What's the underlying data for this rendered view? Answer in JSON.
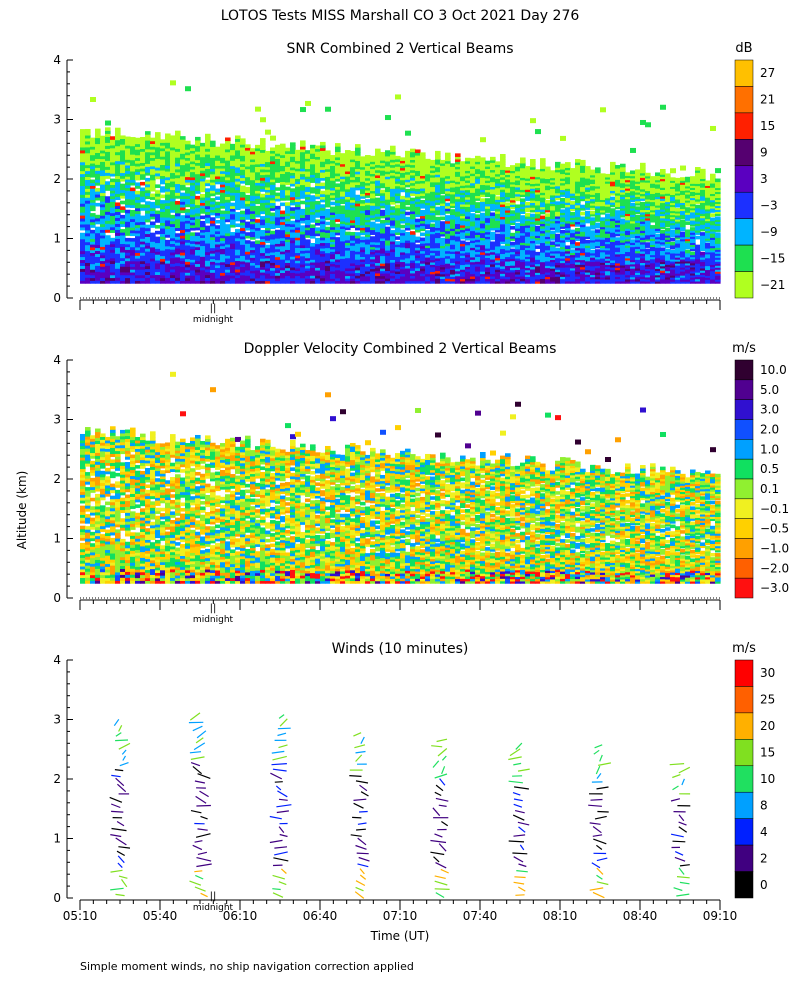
{
  "figure": {
    "main_title": "LOTOS Tests MISS Marshall CO   3 Oct 2021 Day 276",
    "y_axis_label": "Altitude (km)",
    "x_axis_label": "Time (UT)",
    "midnight_marker": "midnight",
    "footnote": "Simple moment winds, no ship navigation correction applied"
  },
  "chart_data": [
    {
      "type": "heatmap",
      "title": "SNR Combined 2 Vertical Beams",
      "colorbar_unit": "dB",
      "xlim": [
        "05:10",
        "09:10"
      ],
      "ylim": [
        0,
        4
      ],
      "yticks": [
        "0",
        "1",
        "2",
        "3",
        "4"
      ],
      "colorbar_levels": [
        "27",
        "21",
        "15",
        "9",
        "3",
        "−3",
        "−9",
        "−15",
        "−21"
      ],
      "colorbar_colors": [
        "#ffc000",
        "#ff7000",
        "#ff2000",
        "#550070",
        "#5a00c0",
        "#1c30ff",
        "#00b4ff",
        "#1ee050",
        "#b0ff20"
      ],
      "data_top_km": 2.8,
      "data_bottom_km": 0.25
    },
    {
      "type": "heatmap",
      "title": "Doppler Velocity Combined 2 Vertical Beams",
      "colorbar_unit": "m/s",
      "xlim": [
        "05:10",
        "09:10"
      ],
      "ylim": [
        0,
        4
      ],
      "yticks": [
        "0",
        "1",
        "2",
        "3",
        "4"
      ],
      "colorbar_levels": [
        "10.0",
        "5.0",
        "3.0",
        "2.0",
        "1.0",
        "0.5",
        "0.1",
        "−0.1",
        "−0.5",
        "−1.0",
        "−2.0",
        "−3.0"
      ],
      "colorbar_colors": [
        "#300030",
        "#500090",
        "#3010d0",
        "#1050ff",
        "#00a0ff",
        "#10e060",
        "#90f030",
        "#f0f020",
        "#ffd000",
        "#ffa000",
        "#ff6000",
        "#ff1010"
      ],
      "data_top_km": 2.8,
      "data_bottom_km": 0.25
    },
    {
      "type": "scatter",
      "title": "Winds (10 minutes)",
      "colorbar_unit": "m/s",
      "xlim": [
        "05:10",
        "09:10"
      ],
      "ylim": [
        0,
        4
      ],
      "yticks": [
        "0",
        "1",
        "2",
        "3",
        "4"
      ],
      "xticks": [
        "05:10",
        "05:40",
        "06:10",
        "06:40",
        "07:10",
        "07:40",
        "08:10",
        "08:40",
        "09:10"
      ],
      "colorbar_levels": [
        "30",
        "25",
        "20",
        "15",
        "10",
        "8",
        "4",
        "2",
        "0"
      ],
      "colorbar_colors": [
        "#ff0000",
        "#ff6000",
        "#ffb000",
        "#80e020",
        "#20e060",
        "#00a0ff",
        "#0020ff",
        "#400080",
        "#000000"
      ],
      "profile_times": [
        "05:25",
        "05:55",
        "06:25",
        "06:55",
        "07:25",
        "07:55",
        "08:25",
        "08:55"
      ],
      "profile_top_km": [
        3.0,
        3.1,
        3.1,
        2.8,
        2.7,
        2.6,
        2.6,
        2.3
      ]
    }
  ]
}
